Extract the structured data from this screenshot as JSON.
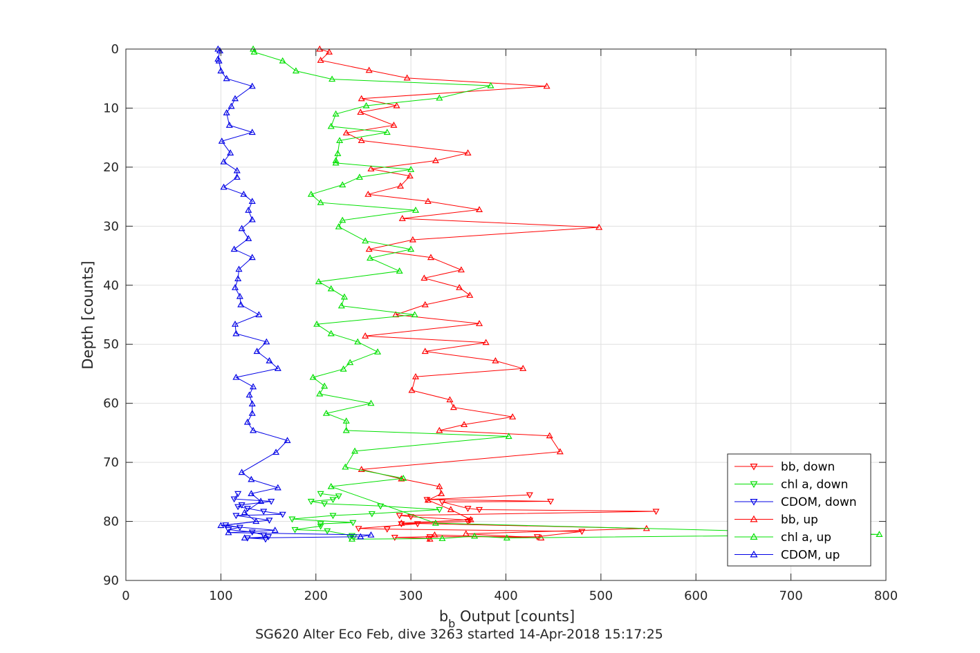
{
  "chart_data": {
    "type": "line",
    "title": "",
    "xlabel": "b_b Output [counts]",
    "xlabel_main": "b",
    "xlabel_sub": "b",
    "xlabel_rest": " Output [counts]",
    "ylabel": "Depth [counts]",
    "footer": "SG620 Alter Eco Feb, dive 3263 started 14-Apr-2018 15:17:25",
    "xlim": [
      0,
      800
    ],
    "ylim": [
      0,
      90
    ],
    "y_reversed": true,
    "grid": true,
    "legend_position": "bottom-right",
    "x_ticks": [
      0,
      100,
      200,
      300,
      400,
      500,
      600,
      700,
      800
    ],
    "y_ticks": [
      0,
      10,
      20,
      30,
      40,
      50,
      60,
      70,
      80,
      90
    ],
    "series": [
      {
        "name": "bb, down",
        "color": "#ff0000",
        "marker": "triangle-down",
        "points": [
          [
            425,
            75.5
          ],
          [
            317,
            76.3
          ],
          [
            447,
            76.6
          ],
          [
            333,
            76.7
          ],
          [
            360,
            77.8
          ],
          [
            372,
            78
          ],
          [
            558,
            78.3
          ],
          [
            288,
            79
          ],
          [
            300,
            79.2
          ],
          [
            362,
            79.8
          ],
          [
            360,
            80
          ],
          [
            290,
            80.4
          ],
          [
            307,
            80.4
          ],
          [
            245,
            81.2
          ],
          [
            275,
            81.3
          ],
          [
            480,
            81.7
          ],
          [
            433,
            82.6
          ],
          [
            320,
            82.6
          ],
          [
            283,
            82.7
          ],
          [
            319,
            82.9
          ]
        ]
      },
      {
        "name": "chl a, down",
        "color": "#00e000",
        "marker": "triangle-down",
        "points": [
          [
            205,
            75.3
          ],
          [
            224,
            75.7
          ],
          [
            218,
            76.3
          ],
          [
            195,
            76.6
          ],
          [
            209,
            77
          ],
          [
            268,
            77.4
          ],
          [
            330,
            78
          ],
          [
            259,
            78.7
          ],
          [
            218,
            79
          ],
          [
            175,
            79.6
          ],
          [
            239,
            80.2
          ],
          [
            205,
            80.4
          ],
          [
            205,
            80.8
          ],
          [
            178,
            81.4
          ],
          [
            212,
            81.6
          ],
          [
            238,
            82.4
          ],
          [
            240,
            82.6
          ],
          [
            236,
            82.7
          ]
        ]
      },
      {
        "name": "CDOM, down",
        "color": "#0000e6",
        "marker": "triangle-down",
        "points": [
          [
            118,
            75.3
          ],
          [
            114,
            76.2
          ],
          [
            153,
            76.6
          ],
          [
            122,
            77.2
          ],
          [
            118,
            77.5
          ],
          [
            128,
            77.8
          ],
          [
            145,
            78.3
          ],
          [
            165,
            78.8
          ],
          [
            116,
            79
          ],
          [
            151,
            79.8
          ],
          [
            105,
            80.6
          ],
          [
            120,
            81
          ],
          [
            108,
            81.4
          ],
          [
            133,
            81.8
          ],
          [
            145,
            82.3
          ],
          [
            150,
            82.6
          ],
          [
            128,
            82.8
          ],
          [
            147,
            83
          ]
        ]
      },
      {
        "name": "bb, up",
        "color": "#ff0000",
        "marker": "triangle-up",
        "points": [
          [
            204,
            0
          ],
          [
            214,
            0.5
          ],
          [
            205,
            1.9
          ],
          [
            256,
            3.6
          ],
          [
            296,
            4.9
          ],
          [
            443,
            6.3
          ],
          [
            248,
            8.4
          ],
          [
            285,
            9.6
          ],
          [
            247,
            10.7
          ],
          [
            282,
            12.9
          ],
          [
            232,
            14.2
          ],
          [
            248,
            15.5
          ],
          [
            360,
            17.6
          ],
          [
            326,
            18.9
          ],
          [
            258,
            20.3
          ],
          [
            299,
            21.5
          ],
          [
            289,
            23.2
          ],
          [
            255,
            24.6
          ],
          [
            318,
            25.8
          ],
          [
            372,
            27.2
          ],
          [
            291,
            28.7
          ],
          [
            498,
            30.2
          ],
          [
            302,
            32.3
          ],
          [
            256,
            33.9
          ],
          [
            321,
            35.3
          ],
          [
            353,
            37.4
          ],
          [
            314,
            38.8
          ],
          [
            351,
            40.4
          ],
          [
            362,
            41.7
          ],
          [
            315,
            43.3
          ],
          [
            284,
            45
          ],
          [
            372,
            46.5
          ],
          [
            252,
            48.6
          ],
          [
            379,
            49.7
          ],
          [
            315,
            51.2
          ],
          [
            389,
            52.8
          ],
          [
            418,
            54.1
          ],
          [
            305,
            55.5
          ],
          [
            301,
            57.8
          ],
          [
            341,
            59.4
          ],
          [
            345,
            60.7
          ],
          [
            407,
            62.3
          ],
          [
            356,
            63.6
          ],
          [
            330,
            64.6
          ],
          [
            446,
            65.5
          ],
          [
            457,
            68.2
          ],
          [
            248,
            71.2
          ],
          [
            290,
            72.8
          ],
          [
            330,
            74.1
          ],
          [
            332,
            75.3
          ],
          [
            318,
            76.4
          ],
          [
            342,
            78
          ],
          [
            363,
            79.7
          ],
          [
            290,
            80.3
          ],
          [
            548,
            81.2
          ],
          [
            358,
            82.1
          ],
          [
            437,
            82.8
          ],
          [
            325,
            82.3
          ],
          [
            320,
            83
          ]
        ]
      },
      {
        "name": "chl a, up",
        "color": "#00e000",
        "marker": "triangle-up",
        "points": [
          [
            134,
            0
          ],
          [
            135,
            0.5
          ],
          [
            165,
            2
          ],
          [
            179,
            3.7
          ],
          [
            217,
            5.1
          ],
          [
            384,
            6.2
          ],
          [
            330,
            8.3
          ],
          [
            253,
            9.6
          ],
          [
            221,
            11
          ],
          [
            216,
            13.1
          ],
          [
            275,
            14.1
          ],
          [
            225,
            15.5
          ],
          [
            223,
            17.7
          ],
          [
            221,
            18.9
          ],
          [
            221,
            19.3
          ],
          [
            300,
            20.4
          ],
          [
            246,
            21.7
          ],
          [
            228,
            23
          ],
          [
            195,
            24.6
          ],
          [
            205,
            26
          ],
          [
            305,
            27.3
          ],
          [
            228,
            29
          ],
          [
            224,
            30.1
          ],
          [
            252,
            32.5
          ],
          [
            300,
            33.9
          ],
          [
            257,
            35.4
          ],
          [
            288,
            37.6
          ],
          [
            203,
            39.4
          ],
          [
            216,
            40.6
          ],
          [
            230,
            42
          ],
          [
            227,
            43.5
          ],
          [
            304,
            45
          ],
          [
            201,
            46.6
          ],
          [
            216,
            48.2
          ],
          [
            244,
            49.6
          ],
          [
            265,
            51.3
          ],
          [
            236,
            53.1
          ],
          [
            229,
            54.2
          ],
          [
            197,
            55.6
          ],
          [
            209,
            57.1
          ],
          [
            204,
            58.4
          ],
          [
            258,
            60
          ],
          [
            211,
            61.7
          ],
          [
            232,
            63
          ],
          [
            232,
            64.6
          ],
          [
            403,
            65.6
          ],
          [
            241,
            68.1
          ],
          [
            231,
            70.8
          ],
          [
            292,
            72.7
          ],
          [
            216,
            74.1
          ],
          [
            326,
            80.3
          ],
          [
            793,
            82.2
          ],
          [
            401,
            82.8
          ],
          [
            367,
            82.5
          ],
          [
            333,
            82.9
          ],
          [
            238,
            83
          ]
        ]
      },
      {
        "name": "CDOM, up",
        "color": "#0000e6",
        "marker": "triangle-up",
        "points": [
          [
            97,
            0
          ],
          [
            99,
            0.3
          ],
          [
            97,
            1.7
          ],
          [
            98,
            2
          ],
          [
            100,
            3.7
          ],
          [
            106,
            5
          ],
          [
            133,
            6.3
          ],
          [
            115,
            8.4
          ],
          [
            111,
            9.7
          ],
          [
            106,
            10.8
          ],
          [
            109,
            12.9
          ],
          [
            133,
            14.1
          ],
          [
            101,
            15.6
          ],
          [
            110,
            17.6
          ],
          [
            103,
            19.1
          ],
          [
            117,
            20.6
          ],
          [
            117,
            21.7
          ],
          [
            103,
            23.4
          ],
          [
            124,
            24.6
          ],
          [
            133,
            25.8
          ],
          [
            129,
            27.3
          ],
          [
            133,
            28.9
          ],
          [
            122,
            30.4
          ],
          [
            129,
            32.1
          ],
          [
            114,
            33.9
          ],
          [
            133,
            35.3
          ],
          [
            119,
            37.3
          ],
          [
            118,
            38.9
          ],
          [
            115,
            40.4
          ],
          [
            120,
            41.9
          ],
          [
            121,
            43.3
          ],
          [
            140,
            45
          ],
          [
            115,
            46.6
          ],
          [
            116,
            48.2
          ],
          [
            148,
            49.6
          ],
          [
            138,
            51.2
          ],
          [
            151,
            52.8
          ],
          [
            160,
            54.1
          ],
          [
            116,
            55.6
          ],
          [
            134,
            57.2
          ],
          [
            130,
            58.6
          ],
          [
            133,
            60.1
          ],
          [
            133,
            61.7
          ],
          [
            128,
            63.2
          ],
          [
            134,
            64.6
          ],
          [
            170,
            66.3
          ],
          [
            158,
            68.3
          ],
          [
            122,
            71.7
          ],
          [
            132,
            72.9
          ],
          [
            160,
            74.3
          ],
          [
            132,
            75.3
          ],
          [
            142,
            76.6
          ],
          [
            125,
            78.5
          ],
          [
            137,
            80
          ],
          [
            100,
            80.7
          ],
          [
            157,
            81.5
          ],
          [
            108,
            81.9
          ],
          [
            258,
            82.3
          ],
          [
            247,
            82.6
          ],
          [
            125,
            82.8
          ]
        ]
      }
    ]
  }
}
